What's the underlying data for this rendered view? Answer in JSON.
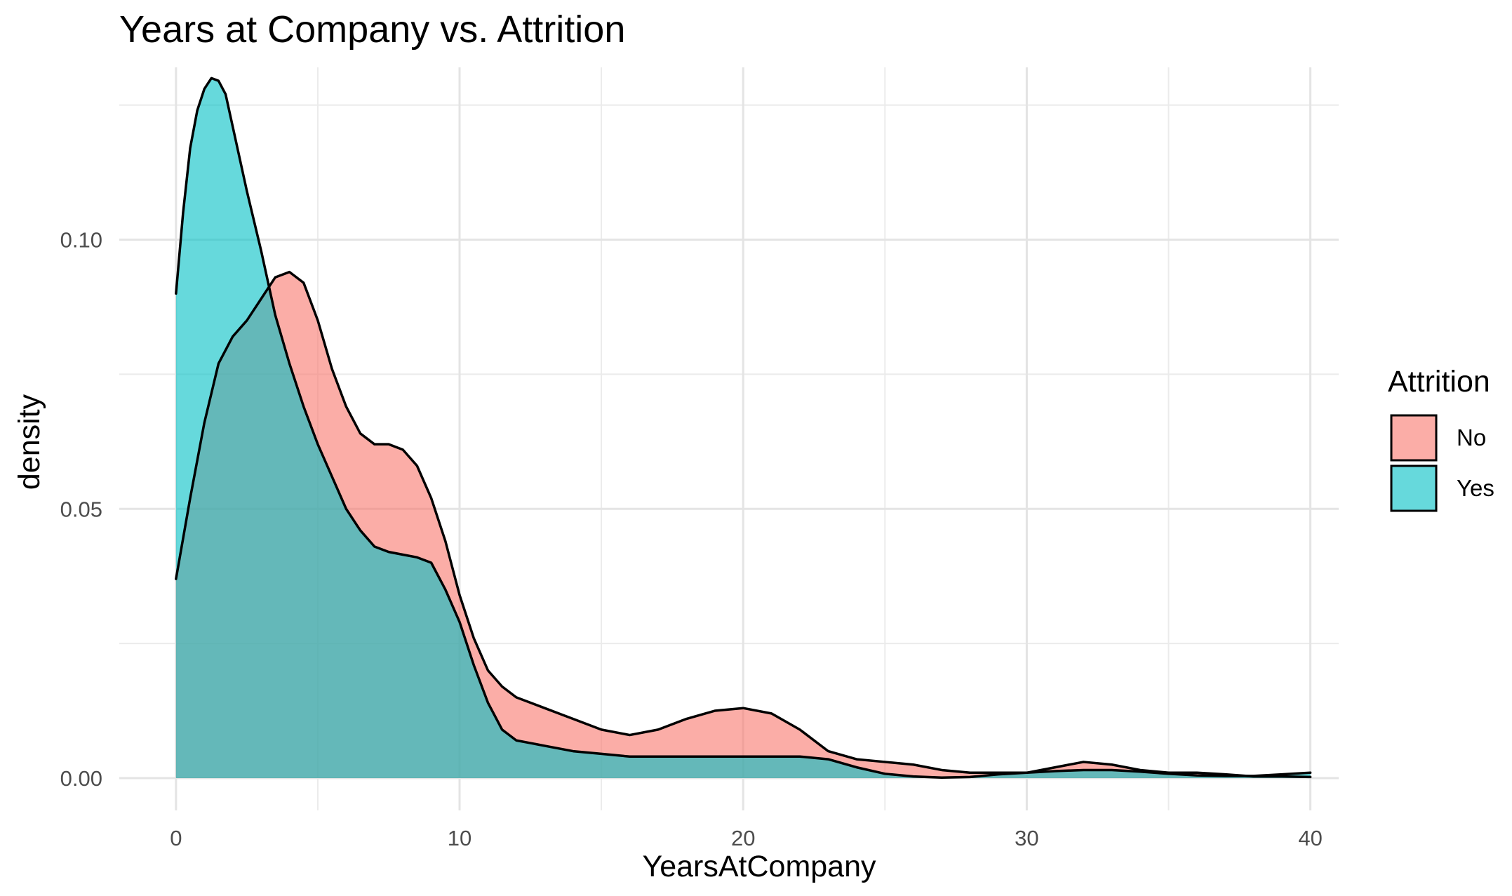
{
  "chart_data": {
    "type": "area",
    "title": "Years at Company vs. Attrition",
    "xlabel": "YearsAtCompany",
    "ylabel": "density",
    "xlim": [
      0,
      40
    ],
    "ylim": [
      0,
      0.13
    ],
    "x_ticks": [
      0,
      10,
      20,
      30,
      40
    ],
    "x_tick_labels": [
      "0",
      "10",
      "20",
      "30",
      "40"
    ],
    "y_ticks": [
      0,
      0.05,
      0.1
    ],
    "y_tick_labels": [
      "0.00",
      "0.05",
      "0.10"
    ],
    "grid": true,
    "legend": {
      "title": "Attrition",
      "placement": "right",
      "items": [
        {
          "label": "No",
          "color": "#F8766D"
        },
        {
          "label": "Yes",
          "color": "#00BFC4"
        }
      ]
    },
    "series": [
      {
        "name": "No",
        "color": "#F8766D",
        "x": [
          0,
          0.5,
          1,
          1.5,
          2,
          2.5,
          3,
          3.5,
          4,
          4.5,
          5,
          5.5,
          6,
          6.5,
          7,
          7.5,
          8,
          8.5,
          9,
          9.5,
          10,
          10.5,
          11,
          11.5,
          12,
          12.5,
          13,
          14,
          15,
          16,
          17,
          18,
          19,
          20,
          21,
          22,
          23,
          24,
          25,
          26,
          27,
          28,
          29,
          30,
          31,
          32,
          33,
          34,
          35,
          36,
          37,
          38,
          39,
          40
        ],
        "y": [
          0.037,
          0.052,
          0.066,
          0.077,
          0.082,
          0.085,
          0.089,
          0.093,
          0.094,
          0.092,
          0.085,
          0.076,
          0.069,
          0.064,
          0.062,
          0.062,
          0.061,
          0.058,
          0.052,
          0.044,
          0.034,
          0.026,
          0.02,
          0.017,
          0.015,
          0.014,
          0.013,
          0.011,
          0.009,
          0.008,
          0.009,
          0.011,
          0.0125,
          0.013,
          0.012,
          0.009,
          0.005,
          0.0035,
          0.003,
          0.0025,
          0.0015,
          0.001,
          0.001,
          0.001,
          0.002,
          0.003,
          0.0025,
          0.0015,
          0.001,
          0.001,
          0.0007,
          0.0003,
          0.0003,
          0.0002
        ]
      },
      {
        "name": "Yes",
        "color": "#00BFC4",
        "x": [
          0,
          0.25,
          0.5,
          0.75,
          1,
          1.25,
          1.5,
          1.75,
          2,
          2.5,
          3,
          3.5,
          4,
          4.5,
          5,
          5.5,
          6,
          6.5,
          7,
          7.5,
          8,
          8.5,
          9,
          9.5,
          10,
          10.5,
          11,
          11.5,
          12,
          12.5,
          13,
          14,
          15,
          16,
          17,
          18,
          19,
          20,
          21,
          22,
          23,
          24,
          25,
          26,
          27,
          28,
          29,
          30,
          31,
          32,
          33,
          34,
          35,
          36,
          37,
          38,
          39,
          40
        ],
        "y": [
          0.09,
          0.105,
          0.117,
          0.124,
          0.128,
          0.13,
          0.1295,
          0.127,
          0.121,
          0.109,
          0.098,
          0.086,
          0.077,
          0.069,
          0.062,
          0.056,
          0.05,
          0.046,
          0.043,
          0.042,
          0.0415,
          0.041,
          0.04,
          0.035,
          0.029,
          0.021,
          0.014,
          0.009,
          0.007,
          0.0065,
          0.006,
          0.005,
          0.0045,
          0.004,
          0.004,
          0.004,
          0.004,
          0.004,
          0.004,
          0.004,
          0.0035,
          0.002,
          0.0008,
          0.0003,
          0.0001,
          0.0002,
          0.0007,
          0.001,
          0.0013,
          0.0015,
          0.0015,
          0.0012,
          0.0008,
          0.0005,
          0.0004,
          0.0004,
          0.0007,
          0.001
        ]
      }
    ]
  }
}
